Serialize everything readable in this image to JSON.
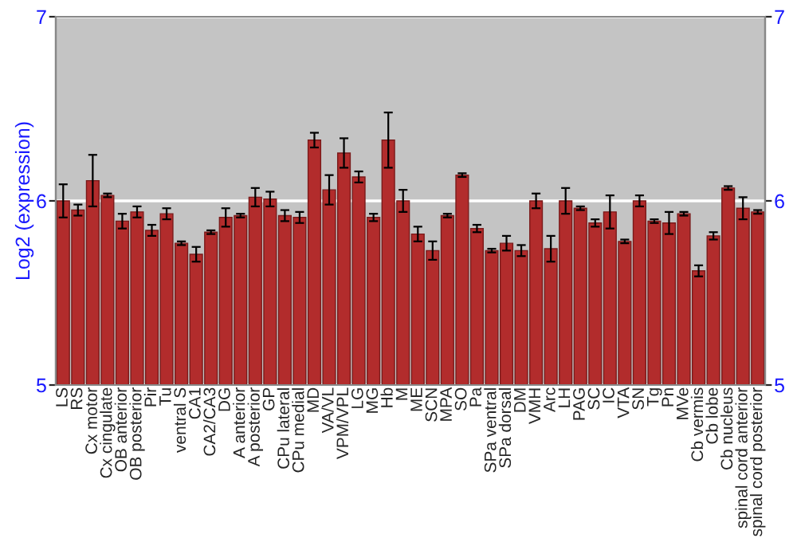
{
  "chart_data": {
    "type": "bar",
    "ylabel": "Log2 (expression)",
    "categories": [
      "LS",
      "RS",
      "Cx motor",
      "Cx cingulate",
      "OB anterior",
      "OB posterior",
      "Pir",
      "Tu",
      "ventral S",
      "CA1",
      "CA2/CA3",
      "DG",
      "A anterior",
      "A posterior",
      "GP",
      "CPu lateral",
      "CPu medial",
      "MD",
      "VA/VL",
      "VPM/VPL",
      "LG",
      "MG",
      "Hb",
      "M",
      "ME",
      "SCN",
      "MPA",
      "SO",
      "Pa",
      "SPa ventral",
      "SPa dorsal",
      "DM",
      "VMH",
      "Arc",
      "LH",
      "PAG",
      "SC",
      "IC",
      "VTA",
      "SN",
      "Tg",
      "Pn",
      "MVe",
      "Cb vermis",
      "Cb lobe",
      "Cb nucleus",
      "spinal cord anterior",
      "spinal cord posterior"
    ],
    "values": [
      6.0,
      5.95,
      6.11,
      6.03,
      5.89,
      5.94,
      5.84,
      5.93,
      5.77,
      5.71,
      5.83,
      5.91,
      5.92,
      6.02,
      6.01,
      5.92,
      5.91,
      6.33,
      6.06,
      6.26,
      6.13,
      5.91,
      6.33,
      6.0,
      5.82,
      5.73,
      5.92,
      6.14,
      5.85,
      5.73,
      5.77,
      5.73,
      6.0,
      5.74,
      6.0,
      5.96,
      5.88,
      5.94,
      5.78,
      6.0,
      5.89,
      5.88,
      5.93,
      5.62,
      5.81,
      6.07,
      5.96,
      5.94
    ],
    "errors": [
      0.09,
      0.03,
      0.14,
      0.01,
      0.04,
      0.03,
      0.03,
      0.03,
      0.01,
      0.04,
      0.01,
      0.05,
      0.01,
      0.05,
      0.04,
      0.03,
      0.03,
      0.04,
      0.08,
      0.08,
      0.03,
      0.02,
      0.15,
      0.06,
      0.04,
      0.05,
      0.01,
      0.01,
      0.02,
      0.01,
      0.04,
      0.03,
      0.04,
      0.07,
      0.07,
      0.01,
      0.02,
      0.09,
      0.01,
      0.03,
      0.01,
      0.06,
      0.01,
      0.03,
      0.02,
      0.01,
      0.06,
      0.01
    ],
    "color": "#b22c2c",
    "ylim": [
      5,
      7
    ],
    "yticks": [
      5,
      6,
      7
    ],
    "y2lim": [
      5,
      7
    ],
    "y2ticks": [
      5,
      6,
      7
    ],
    "grid": "y"
  }
}
